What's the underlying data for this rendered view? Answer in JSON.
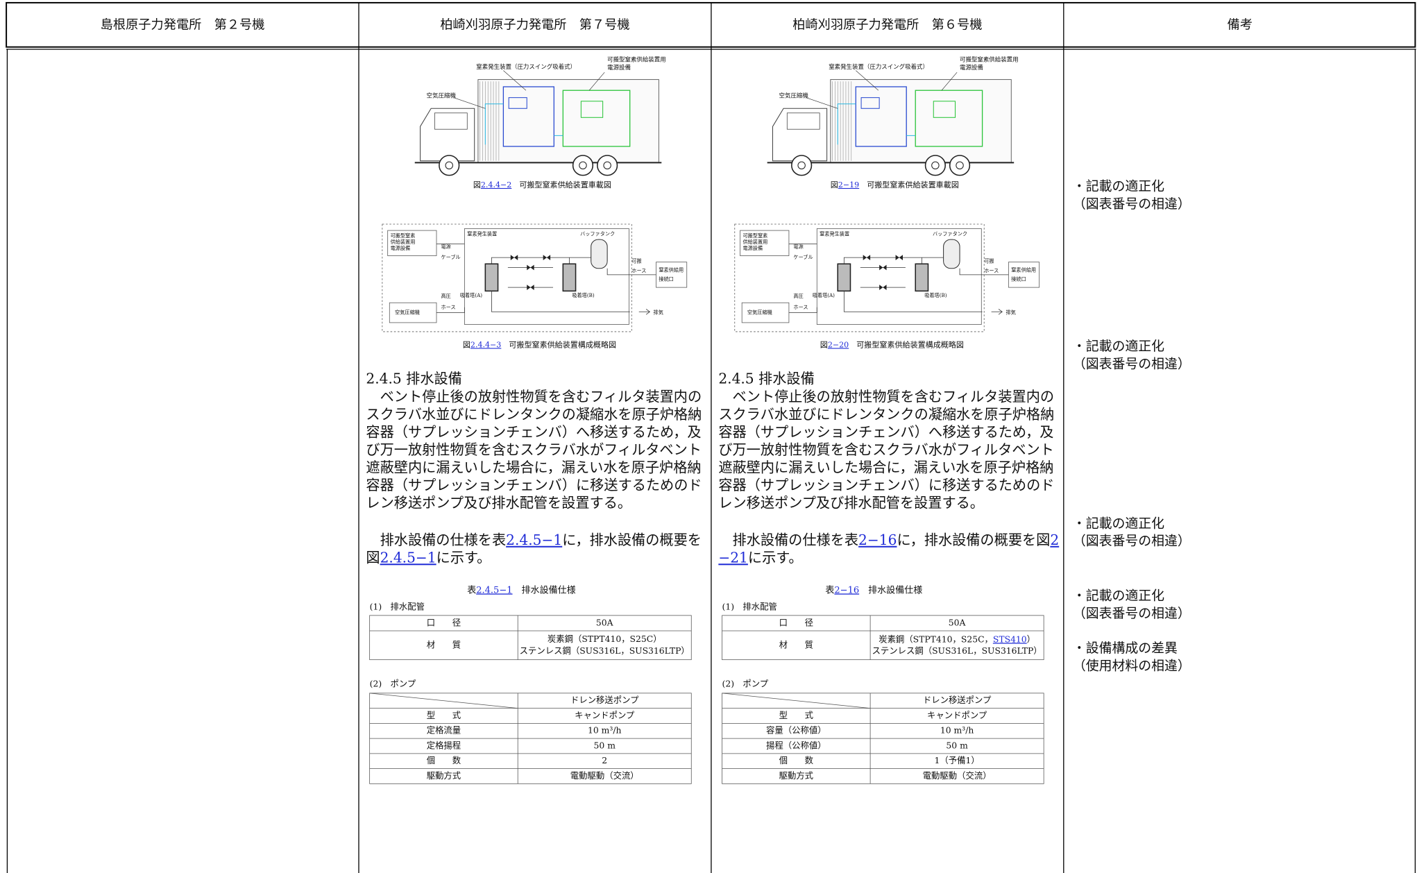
{
  "header": {
    "columns": [
      "島根原子力発電所　第２号機",
      "柏崎刈羽原子力発電所　第７号機",
      "柏崎刈羽原子力発電所　第６号機",
      "備考"
    ]
  },
  "columns": [
    {
      "figure1": {
        "labels": [
          "窒素発生装置（圧力スイング吸着式）",
          "可搬型窒素供給装置用",
          "電源設備",
          "空気圧縮機"
        ],
        "caption": [
          [
            "図",
            {
              "text": "2.4.4−2",
              "link": true
            },
            "　可搬型窒素供給装置車載図"
          ]
        ]
      },
      "figure2": {
        "labels": [
          "可搬型窒素",
          "供給装置用",
          "電源設備",
          "電源",
          "ケーブル",
          "窒素発生装置",
          "バッファタンク",
          "可搬",
          "ホース",
          "窒素供給用",
          "接続口",
          "吸着塔(A)",
          "吸着塔(B)",
          "高圧",
          "ホース",
          "空気圧縮機",
          "排気"
        ],
        "caption": [
          [
            "図",
            {
              "text": "2.4.4−3",
              "link": true
            },
            "　可搬型窒素供給装置構成概略図"
          ]
        ]
      },
      "heading": "2.4.5 排水設備",
      "paragraph1": [
        "　ベント停止後の放射性物質を含むフィルタ装置内の",
        "スクラバ水並びにドレンタンクの凝縮水を原子炉格納",
        "容器（サプレッションチェンバ）へ移送するため，及",
        "び万一放射性物質を含むスクラバ水がフィルタベント",
        "遮蔽壁内に漏えいした場合に，漏えい水を原子炉格納",
        "容器（サプレッションチェンバ）に移送するためのド",
        "レン移送ポンプ及び排水配管を設置する。"
      ],
      "paragraph2": [
        [
          "　排水設備の仕様を表",
          {
            "text": "2.4.5−1",
            "link": true
          },
          "に，排水設備の概要を"
        ],
        [
          "図",
          {
            "text": "2.4.5−1",
            "link": true
          },
          "に示す。"
        ]
      ],
      "table_caption": [
        [
          "表",
          {
            "text": "2.4.5−1",
            "link": true
          },
          "　排水設備仕様"
        ]
      ],
      "table1": {
        "subheading": "(1)　排水配管",
        "rows": [
          [
            "口　　径",
            "50A"
          ],
          [
            "材　　質",
            [
              "炭素鋼（STPT410，S25C）",
              "ステンレス鋼（SUS316L，SUS316LTP）"
            ]
          ]
        ]
      },
      "table2": {
        "subheading": "(2)　ポンプ",
        "column_header": "ドレン移送ポンプ",
        "rows": [
          [
            "型　　式",
            "キャンドポンプ"
          ],
          [
            "定格流量",
            "10 m³/h"
          ],
          [
            "定格揚程",
            "50 m"
          ],
          [
            "個　　数",
            "2"
          ],
          [
            "駆動方式",
            "電動駆動（交流）"
          ]
        ]
      }
    },
    {
      "figure1": {
        "labels": [
          "窒素発生装置（圧力スイング吸着式）",
          "可搬型窒素供給装置用",
          "電源設備",
          "空気圧縮機"
        ],
        "caption": [
          [
            "図",
            {
              "text": "2−19",
              "link": true
            },
            "　可搬型窒素供給装置車載図"
          ]
        ]
      },
      "figure2": {
        "labels": [
          "可搬型窒素",
          "供給装置用",
          "電源設備",
          "電源",
          "ケーブル",
          "窒素発生装置",
          "バッファタンク",
          "可搬",
          "ホース",
          "窒素供給用",
          "接続口",
          "吸着塔(A)",
          "吸着塔(B)",
          "高圧",
          "ホース",
          "空気圧縮機",
          "排気"
        ],
        "caption": [
          [
            "図",
            {
              "text": "2−20",
              "link": true
            },
            "　可搬型窒素供給装置構成概略図"
          ]
        ]
      },
      "heading": "2.4.5 排水設備",
      "paragraph1": [
        "　ベント停止後の放射性物質を含むフィルタ装置内の",
        "スクラバ水並びにドレンタンクの凝縮水を原子炉格納",
        "容器（サプレッションチェンバ）へ移送するため，及",
        "び万一放射性物質を含むスクラバ水がフィルタベント",
        "遮蔽壁内に漏えいした場合に，漏えい水を原子炉格納",
        "容器（サプレッションチェンバ）に移送するためのド",
        "レン移送ポンプ及び排水配管を設置する。"
      ],
      "paragraph2": [
        [
          "　排水設備の仕様を表",
          {
            "text": "2−16",
            "link": true
          },
          "に，排水設備の概要を図",
          {
            "text": "2",
            "link": true
          }
        ],
        [
          {
            "text": "−21",
            "link": true
          },
          "に示す。"
        ]
      ],
      "table_caption": [
        [
          "表",
          {
            "text": "2−16",
            "link": true
          },
          "　排水設備仕様"
        ]
      ],
      "table1": {
        "subheading": "(1)　排水配管",
        "rows": [
          [
            "口　　径",
            "50A"
          ],
          [
            "材　　質",
            [
              [
                "炭素鋼（STPT410，S25C，",
                {
                  "text": "STS410",
                  "link": true
                },
                "）"
              ],
              "ステンレス鋼（SUS316L，SUS316LTP）"
            ]
          ]
        ]
      },
      "table2": {
        "subheading": "(2)　ポンプ",
        "column_header": "ドレン移送ポンプ",
        "rows": [
          [
            "型　　式",
            "キャンドポンプ"
          ],
          [
            "容量（公称値）",
            "10 m³/h"
          ],
          [
            "揚程（公称値）",
            "50 m"
          ],
          [
            "個　　数",
            "1（予備1）"
          ],
          [
            "駆動方式",
            "電動駆動（交流）"
          ]
        ]
      }
    }
  ],
  "notes": [
    {
      "lines": [
        "・記載の適正化",
        "（図表番号の相違）"
      ]
    },
    {
      "lines": [
        "・記載の適正化",
        "（図表番号の相違）"
      ]
    },
    {
      "lines": [
        "・記載の適正化",
        "（図表番号の相違）"
      ]
    },
    {
      "lines": [
        "・記載の適正化",
        "（図表番号の相違）"
      ]
    },
    {
      "lines": [
        "・設備構成の差異",
        "（使用材料の相違）"
      ]
    }
  ]
}
